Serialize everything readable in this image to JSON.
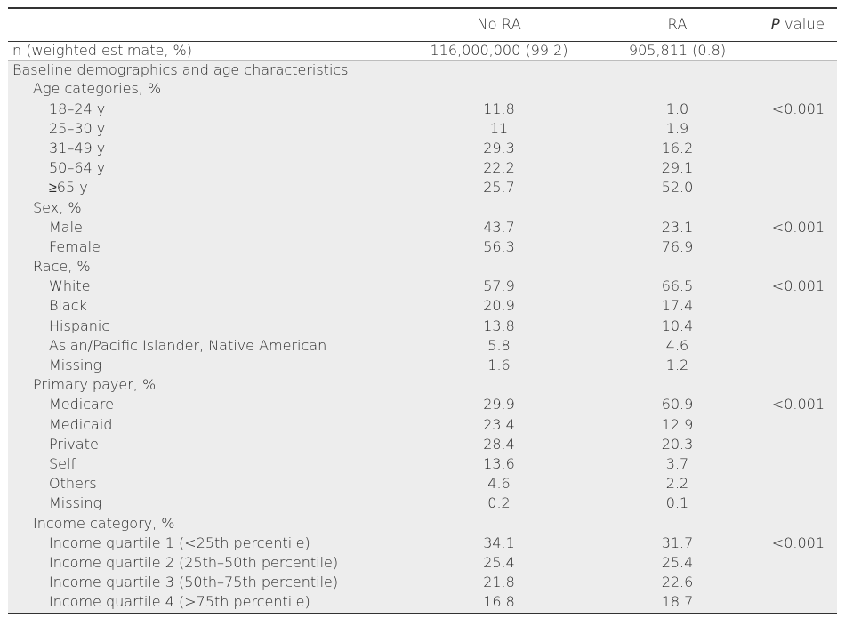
{
  "table": {
    "headers": [
      "",
      "No RA",
      "RA",
      "P value"
    ],
    "rows": [
      {
        "label": "n (weighted estimate, %)",
        "no_ra": "116,000,000 (99.2)",
        "ra": "905,811 (0.8)",
        "p": "",
        "level": 0
      },
      {
        "label": "Baseline demographics and age characteristics",
        "no_ra": "",
        "ra": "",
        "p": "",
        "level": 0
      },
      {
        "label": "Age categories, %",
        "no_ra": "",
        "ra": "",
        "p": "",
        "level": 1
      },
      {
        "label": "18–24 y",
        "no_ra": "11.8",
        "ra": "1.0",
        "p": "<0.001",
        "level": 2
      },
      {
        "label": "25–30 y",
        "no_ra": "11",
        "ra": "1.9",
        "p": "",
        "level": 2
      },
      {
        "label": "31–49 y",
        "no_ra": "29.3",
        "ra": "16.2",
        "p": "",
        "level": 2
      },
      {
        "label": "50–64 y",
        "no_ra": "22.2",
        "ra": "29.1",
        "p": "",
        "level": 2
      },
      {
        "label": "≥65 y",
        "no_ra": "25.7",
        "ra": "52.0",
        "p": "",
        "level": 2
      },
      {
        "label": "Sex, %",
        "no_ra": "",
        "ra": "",
        "p": "",
        "level": 1
      },
      {
        "label": "Male",
        "no_ra": "43.7",
        "ra": "23.1",
        "p": "<0.001",
        "level": 2
      },
      {
        "label": "Female",
        "no_ra": "56.3",
        "ra": "76.9",
        "p": "",
        "level": 2
      },
      {
        "label": "Race, %",
        "no_ra": "",
        "ra": "",
        "p": "",
        "level": 1
      },
      {
        "label": "White",
        "no_ra": "57.9",
        "ra": "66.5",
        "p": "<0.001",
        "level": 2
      },
      {
        "label": "Black",
        "no_ra": "20.9",
        "ra": "17.4",
        "p": "",
        "level": 2
      },
      {
        "label": "Hispanic",
        "no_ra": "13.8",
        "ra": "10.4",
        "p": "",
        "level": 2
      },
      {
        "label": "Asian/Pacific Islander, Native American",
        "no_ra": "5.8",
        "ra": "4.6",
        "p": "",
        "level": 2
      },
      {
        "label": "Missing",
        "no_ra": "1.6",
        "ra": "1.2",
        "p": "",
        "level": 2
      },
      {
        "label": "Primary payer, %",
        "no_ra": "",
        "ra": "",
        "p": "",
        "level": 1
      },
      {
        "label": "Medicare",
        "no_ra": "29.9",
        "ra": "60.9",
        "p": "<0.001",
        "level": 2
      },
      {
        "label": "Medicaid",
        "no_ra": "23.4",
        "ra": "12.9",
        "p": "",
        "level": 2
      },
      {
        "label": "Private",
        "no_ra": "28.4",
        "ra": "20.3",
        "p": "",
        "level": 2
      },
      {
        "label": "Self",
        "no_ra": "13.6",
        "ra": "3.7",
        "p": "",
        "level": 2
      },
      {
        "label": "Others",
        "no_ra": "4.6",
        "ra": "2.2",
        "p": "",
        "level": 2
      },
      {
        "label": "Missing",
        "no_ra": "0.2",
        "ra": "0.1",
        "p": "",
        "level": 2
      },
      {
        "label": "Income category, %",
        "no_ra": "",
        "ra": "",
        "p": "",
        "level": 1
      },
      {
        "label": "Income quartile 1 (<25th percentile)",
        "no_ra": "34.1",
        "ra": "31.7",
        "p": "<0.001",
        "level": 2
      },
      {
        "label": "Income quartile 2 (25th–50th percentile)",
        "no_ra": "25.4",
        "ra": "25.4",
        "p": "",
        "level": 2
      },
      {
        "label": "Income quartile 3 (50th–75th percentile)",
        "no_ra": "21.8",
        "ra": "22.6",
        "p": "",
        "level": 2
      },
      {
        "label": "Income quartile 4 (>75th percentile)",
        "no_ra": "16.8",
        "ra": "18.7",
        "p": "",
        "level": 2
      }
    ]
  }
}
